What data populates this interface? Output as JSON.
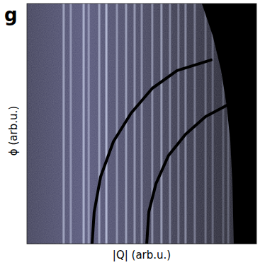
{
  "chart_data": {
    "type": "image",
    "panel_label": "g",
    "x_label": "|Q| (arb.u.)",
    "y_label": "ϕ (arb.u.)",
    "xlim": [
      0,
      1
    ],
    "ylim": [
      0,
      1
    ],
    "tick_labels": false,
    "streaks": {
      "color": "#c8cee8",
      "x": [
        0.16,
        0.191,
        0.247,
        0.269,
        0.315,
        0.346,
        0.392,
        0.432,
        0.469,
        0.5,
        0.546,
        0.586,
        0.623,
        0.66,
        0.691,
        0.731,
        0.778,
        0.809,
        0.855,
        0.877
      ],
      "intensity": [
        0.6,
        0.5,
        0.7,
        0.5,
        0.6,
        0.8,
        0.5,
        0.6,
        0.55,
        0.5,
        0.5,
        0.6,
        0.45,
        0.4,
        0.5,
        0.4,
        0.35,
        0.3,
        0.25,
        0.3
      ]
    },
    "shadow_edge": {
      "color": "#000000",
      "x": [
        0.762,
        0.809,
        0.846,
        0.87,
        0.886,
        0.895,
        0.901
      ],
      "y": [
        1,
        0.868,
        0.721,
        0.574,
        0.426,
        0.25,
        0
      ]
    },
    "series": [
      {
        "type": "line",
        "color": "#000000",
        "x": [
          0.284,
          0.293,
          0.321,
          0.377,
          0.454,
          0.546,
          0.654,
          0.802
        ],
        "values": [
          0,
          0.132,
          0.279,
          0.426,
          0.544,
          0.647,
          0.721,
          0.765
        ]
      },
      {
        "type": "line",
        "color": "#000000",
        "x": [
          0.522,
          0.531,
          0.562,
          0.617,
          0.691,
          0.778,
          0.877
        ],
        "values": [
          0,
          0.132,
          0.25,
          0.368,
          0.456,
          0.529,
          0.579
        ]
      }
    ]
  }
}
